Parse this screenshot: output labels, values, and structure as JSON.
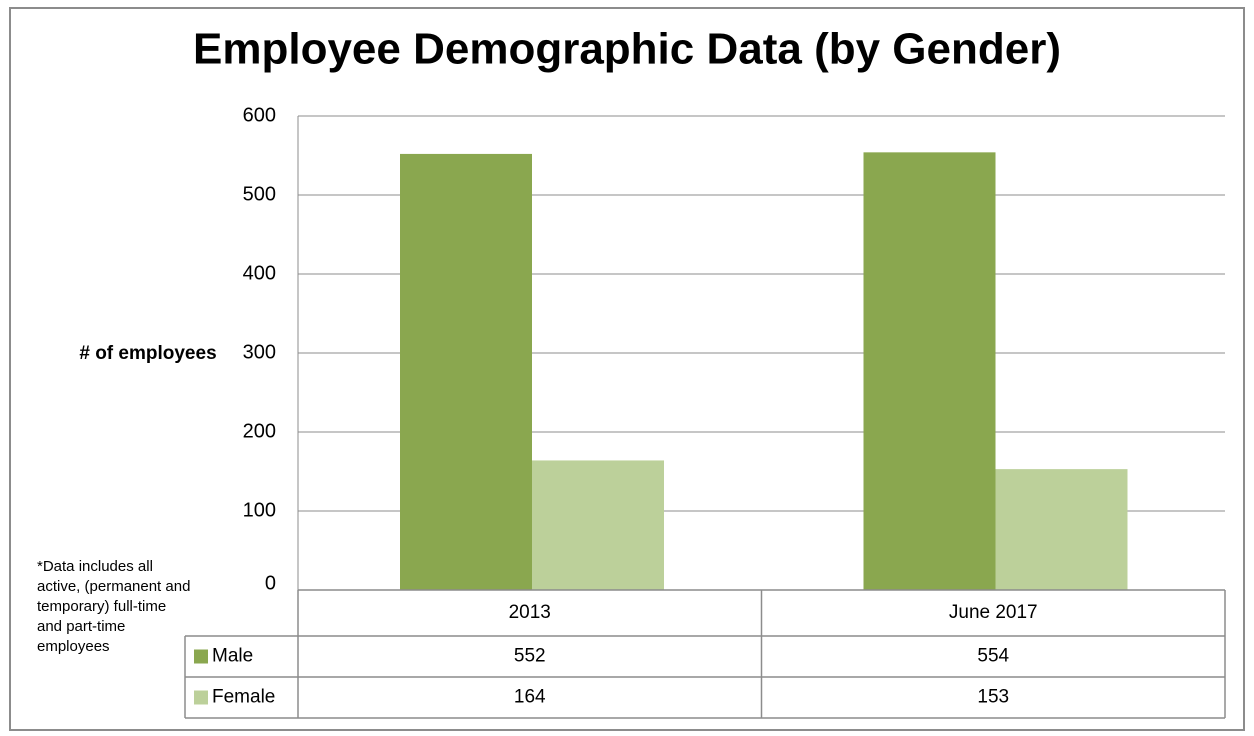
{
  "chart_data": {
    "type": "bar",
    "title": "Employee Demographic Data (by Gender)",
    "y_label": "# of employees",
    "note": [
      "*Data includes all",
      "active, (permanent and",
      "temporary) full-time",
      "and part-time",
      "employees"
    ],
    "categories": [
      "2013",
      "June 2017"
    ],
    "series": [
      {
        "name": "Male",
        "color": "#8aa74f",
        "values": [
          552,
          554
        ]
      },
      {
        "name": "Female",
        "color": "#bcd09a",
        "values": [
          164,
          153
        ]
      }
    ],
    "ylim": [
      0,
      600
    ],
    "yticks": [
      0,
      100,
      200,
      300,
      400,
      500,
      600
    ],
    "grid": true,
    "data_table": true
  }
}
